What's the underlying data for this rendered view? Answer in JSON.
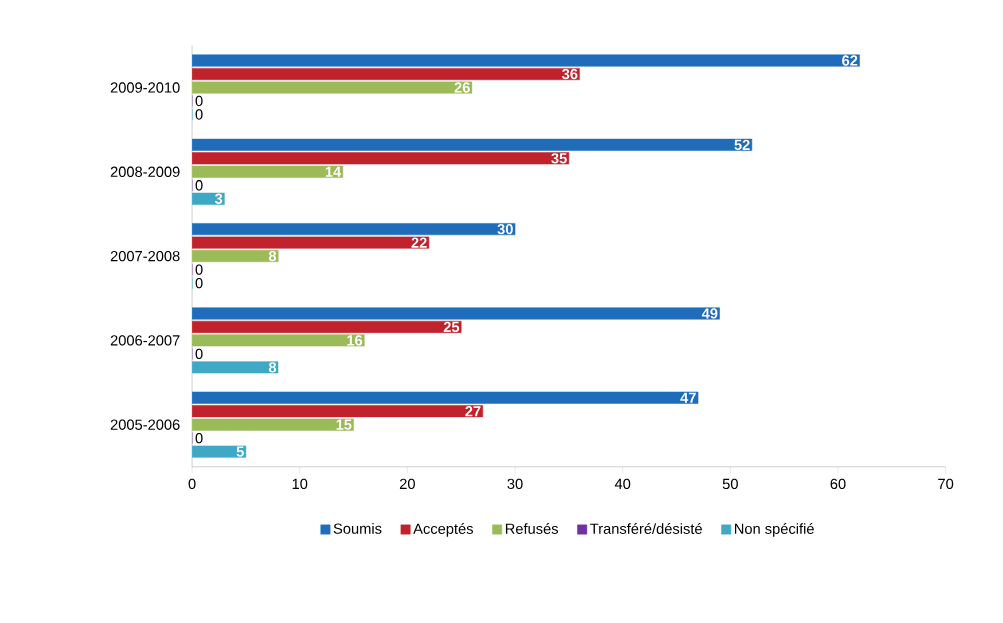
{
  "chart_data": {
    "type": "bar",
    "orientation": "horizontal",
    "categories": [
      "2009-2010",
      "2008-2009",
      "2007-2008",
      "2006-2007",
      "2005-2006"
    ],
    "series": [
      {
        "name": "Soumis",
        "color": "#1f6dba",
        "values": [
          62,
          52,
          30,
          49,
          47
        ]
      },
      {
        "name": "Acceptés",
        "color": "#c0232b",
        "values": [
          36,
          35,
          22,
          25,
          27
        ]
      },
      {
        "name": "Refusés",
        "color": "#9bbb59",
        "values": [
          26,
          14,
          8,
          16,
          15
        ]
      },
      {
        "name": "Transféré/désisté",
        "color": "#7030a0",
        "values": [
          0,
          0,
          0,
          0,
          0
        ]
      },
      {
        "name": "Non spécifié",
        "color": "#3fa9c5",
        "values": [
          0,
          3,
          0,
          8,
          5
        ]
      }
    ],
    "xlim": [
      0,
      70
    ],
    "xticks": [
      0,
      10,
      20,
      30,
      40,
      50,
      60,
      70
    ],
    "data_labels": true,
    "legend": "bottom"
  }
}
